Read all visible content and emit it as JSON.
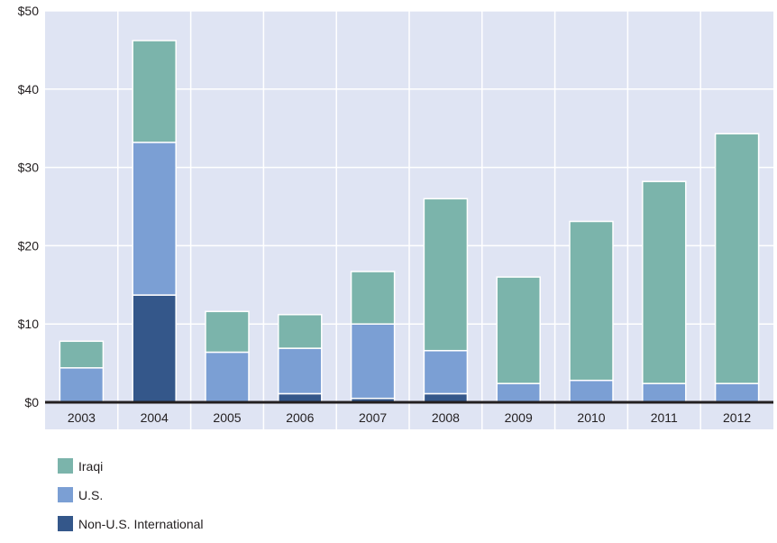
{
  "chart_data": {
    "type": "bar",
    "stacked": true,
    "categories": [
      "2003",
      "2004",
      "2005",
      "2006",
      "2007",
      "2008",
      "2009",
      "2010",
      "2011",
      "2012"
    ],
    "series": [
      {
        "name": "Non-U.S. International",
        "color": "#34578a",
        "values": [
          0,
          13.7,
          0,
          1.1,
          0.5,
          1.1,
          0,
          0,
          0,
          0
        ]
      },
      {
        "name": "U.S.",
        "color": "#7b9fd4",
        "values": [
          4.4,
          19.5,
          6.4,
          5.8,
          9.5,
          5.5,
          2.4,
          2.8,
          2.4,
          2.4
        ]
      },
      {
        "name": "Iraqi",
        "color": "#7bb4ab",
        "values": [
          3.4,
          13.0,
          5.2,
          4.3,
          6.7,
          19.4,
          13.6,
          20.3,
          25.8,
          31.9
        ]
      }
    ],
    "y_ticks": [
      "$0",
      "$10",
      "$20",
      "$30",
      "$40",
      "$50"
    ],
    "ylim": [
      0,
      50
    ],
    "grid": true,
    "plot_background": "#dfe4f3",
    "legend": {
      "position": "bottom-left",
      "order": [
        "Iraqi",
        "U.S.",
        "Non-U.S. International"
      ]
    }
  }
}
